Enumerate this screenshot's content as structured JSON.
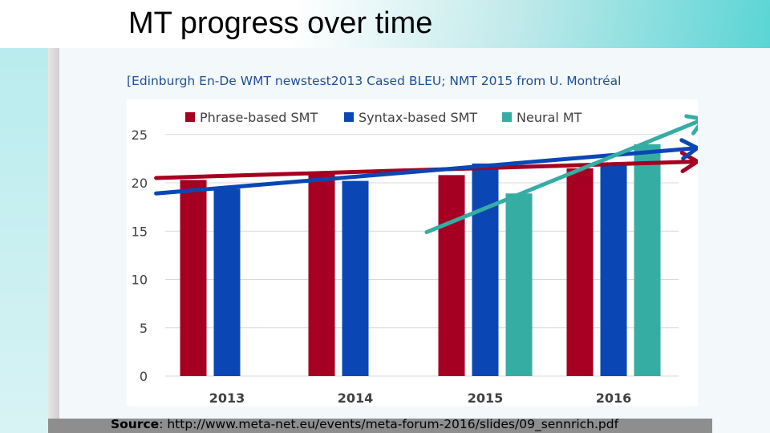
{
  "slide": {
    "title": "MT progress over time",
    "subtitle": "[Edinburgh En-De WMT newstest2013 Cased BLEU; NMT 2015 from U. Montréal",
    "source_label": "Source",
    "source_text": ": http://www.meta-net.eu/events/meta-forum-2016/slides/09_sennrich.pdf"
  },
  "colors": {
    "phrase": "#a50021",
    "syntax": "#0a47b5",
    "neural": "#36ada3",
    "subtitle": "#1f4f92",
    "accent": "#3fcfcf"
  },
  "chart_data": {
    "type": "bar",
    "categories": [
      "2013",
      "2014",
      "2015",
      "2016"
    ],
    "series": [
      {
        "name": "Phrase-based SMT",
        "values": [
          20.3,
          20.9,
          20.8,
          21.5
        ],
        "color": "#a50021"
      },
      {
        "name": "Syntax-based SMT",
        "values": [
          19.4,
          20.2,
          22.0,
          22.0
        ],
        "color": "#0a47b5"
      },
      {
        "name": "Neural MT",
        "values": [
          null,
          null,
          18.9,
          24.0
        ],
        "color": "#36ada3"
      }
    ],
    "yticks": [
      0,
      5,
      10,
      15,
      20,
      25
    ],
    "ylim": [
      0,
      27
    ],
    "grid": true,
    "legend": "top",
    "trend_arrows": [
      {
        "series": "Phrase-based SMT",
        "color": "#a50021",
        "from": [
          -0.55,
          20.5
        ],
        "to": [
          3.65,
          22.2
        ]
      },
      {
        "series": "Syntax-based SMT",
        "color": "#0a47b5",
        "from": [
          -0.55,
          18.9
        ],
        "to": [
          3.65,
          23.6
        ]
      },
      {
        "series": "Neural MT",
        "color": "#36ada3",
        "from": [
          1.55,
          14.9
        ],
        "to": [
          3.7,
          26.6
        ]
      }
    ]
  }
}
